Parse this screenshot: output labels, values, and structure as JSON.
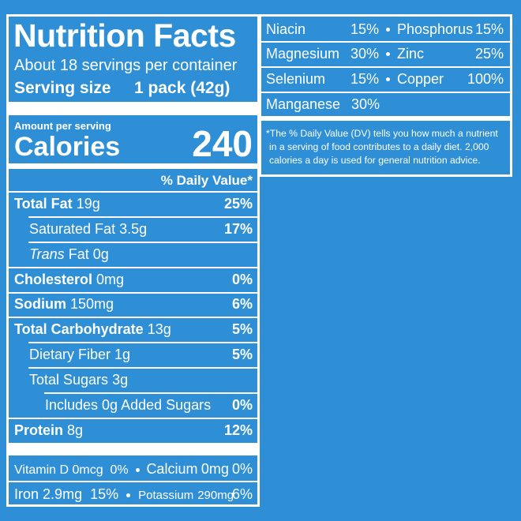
{
  "header": {
    "title": "Nutrition Facts",
    "servings": "About 18 servings per container",
    "serving_size_label": "Serving size",
    "serving_size": "1 pack (42g)"
  },
  "calories": {
    "amount_label": "Amount per serving",
    "label": "Calories",
    "value": "240"
  },
  "dv_header": "% Daily Value*",
  "nutrients": [
    {
      "name": "Total Fat",
      "amount": "19g",
      "dv": "25%"
    },
    {
      "name": "Saturated Fat",
      "amount": "3.5g",
      "dv": "17%"
    },
    {
      "name_italic": "Trans",
      "name": "Fat",
      "amount": "0g"
    },
    {
      "name": "Cholesterol",
      "amount": "0mg",
      "dv": "0%"
    },
    {
      "name": "Sodium",
      "amount": "150mg",
      "dv": "6%"
    },
    {
      "name": "Total Carbohydrate",
      "amount": "13g",
      "dv": "5%"
    },
    {
      "name": "Dietary Fiber",
      "amount": "1g",
      "dv": "5%"
    },
    {
      "name": "Total Sugars",
      "amount": "3g"
    },
    {
      "name": "Includes 0g Added Sugars",
      "dv": "0%"
    },
    {
      "name": "Protein",
      "amount": "8g",
      "dv": "12%"
    }
  ],
  "vitamins": [
    {
      "name": "Vitamin D",
      "amount": "0mcg",
      "dv": "0%"
    },
    {
      "name": "Calcium",
      "amount": "0mg",
      "dv": "0%"
    },
    {
      "name": "Iron",
      "amount": "2.9mg",
      "dv": "15%"
    },
    {
      "name": "Potassium",
      "amount": "290mg",
      "dv": "6%"
    }
  ],
  "minerals": [
    {
      "name": "Niacin",
      "dv": "15%"
    },
    {
      "name": "Phosphorus",
      "dv": "15%"
    },
    {
      "name": "Magnesium",
      "dv": "30%"
    },
    {
      "name": "Zinc",
      "dv": "25%"
    },
    {
      "name": "Selenium",
      "dv": "15%"
    },
    {
      "name": "Copper",
      "dv": "100%"
    },
    {
      "name": "Manganese",
      "dv": "30%"
    }
  ],
  "footnote": "*The % Daily Value (DV) tells you how much a nutrient in a serving of food contributes to a daily diet. 2,000 calories a day is used for general nutrition advice."
}
